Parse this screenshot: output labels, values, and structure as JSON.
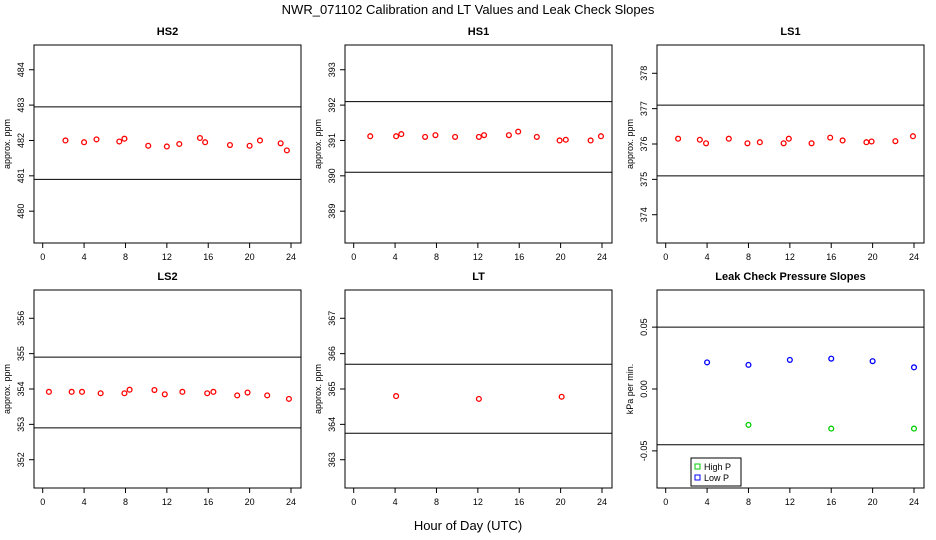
{
  "title": "NWR_071102  Calibration and LT Values and Leak Check Slopes",
  "xlabel": "Hour of Day (UTC)",
  "colors": {
    "points_main": "#ff0000",
    "high_p": "#00cc00",
    "low_p": "#0000ff",
    "line": "#000000"
  },
  "chart_data": [
    {
      "type": "scatter",
      "title": "HS2",
      "ylabel": "approx. ppm",
      "xlim": [
        0,
        24
      ],
      "xticks": [
        0,
        4,
        8,
        12,
        16,
        20,
        24
      ],
      "ylim": [
        479.1,
        484.7
      ],
      "yticks": [
        480,
        481,
        482,
        483,
        484
      ],
      "hlines": [
        482.95,
        480.9
      ],
      "series": [
        {
          "color": "#ff0000",
          "x": [
            2.2,
            4.0,
            5.2,
            7.4,
            7.9,
            10.2,
            12.0,
            13.2,
            15.2,
            15.7,
            18.1,
            20.0,
            21.0,
            23.0,
            23.6
          ],
          "y": [
            482.0,
            481.95,
            482.03,
            481.97,
            482.05,
            481.85,
            481.83,
            481.9,
            482.07,
            481.95,
            481.87,
            481.85,
            482.0,
            481.92,
            481.72
          ]
        }
      ]
    },
    {
      "type": "scatter",
      "title": "HS1",
      "ylabel": "approx. ppm",
      "xlim": [
        0,
        24
      ],
      "xticks": [
        0,
        4,
        8,
        12,
        16,
        20,
        24
      ],
      "ylim": [
        388.1,
        393.7
      ],
      "yticks": [
        389,
        390,
        391,
        392,
        393
      ],
      "hlines": [
        392.1,
        390.1
      ],
      "series": [
        {
          "color": "#ff0000",
          "x": [
            1.6,
            4.1,
            4.6,
            6.9,
            7.9,
            9.8,
            12.1,
            12.6,
            15.0,
            15.9,
            17.7,
            19.9,
            20.5,
            22.9,
            23.9
          ],
          "y": [
            391.12,
            391.12,
            391.18,
            391.1,
            391.15,
            391.1,
            391.1,
            391.15,
            391.15,
            391.25,
            391.1,
            391.0,
            391.02,
            391.0,
            391.12
          ]
        }
      ]
    },
    {
      "type": "scatter",
      "title": "LS1",
      "ylabel": "approx. ppm",
      "xlim": [
        0,
        24
      ],
      "xticks": [
        0,
        4,
        8,
        12,
        16,
        20,
        24
      ],
      "ylim": [
        373.2,
        378.8
      ],
      "yticks": [
        374,
        375,
        376,
        377,
        378
      ],
      "hlines": [
        377.1,
        375.1
      ],
      "series": [
        {
          "color": "#ff0000",
          "x": [
            1.2,
            3.3,
            3.9,
            6.1,
            7.9,
            9.1,
            11.4,
            11.9,
            14.1,
            15.9,
            17.1,
            19.4,
            19.9,
            22.2,
            23.9
          ],
          "y": [
            376.15,
            376.12,
            376.02,
            376.15,
            376.02,
            376.05,
            376.02,
            376.15,
            376.02,
            376.18,
            376.1,
            376.05,
            376.07,
            376.08,
            376.22
          ]
        }
      ]
    },
    {
      "type": "scatter",
      "title": "LS2",
      "ylabel": "approx. ppm",
      "xlim": [
        0,
        24
      ],
      "xticks": [
        0,
        4,
        8,
        12,
        16,
        20,
        24
      ],
      "ylim": [
        351.2,
        356.8
      ],
      "yticks": [
        352,
        353,
        354,
        355,
        356
      ],
      "hlines": [
        354.9,
        352.9
      ],
      "series": [
        {
          "color": "#ff0000",
          "x": [
            0.6,
            2.8,
            3.8,
            5.6,
            7.9,
            8.4,
            10.8,
            11.8,
            13.5,
            15.9,
            16.5,
            18.8,
            19.8,
            21.7,
            23.8
          ],
          "y": [
            353.92,
            353.92,
            353.92,
            353.88,
            353.88,
            353.98,
            353.97,
            353.85,
            353.92,
            353.88,
            353.92,
            353.82,
            353.9,
            353.82,
            353.72
          ]
        }
      ]
    },
    {
      "type": "scatter",
      "title": "LT",
      "ylabel": "approx. ppm",
      "xlim": [
        0,
        24
      ],
      "xticks": [
        0,
        4,
        8,
        12,
        16,
        20,
        24
      ],
      "ylim": [
        362.2,
        367.8
      ],
      "yticks": [
        363,
        364,
        365,
        366,
        367
      ],
      "hlines": [
        365.7,
        363.75
      ],
      "series": [
        {
          "color": "#ff0000",
          "x": [
            4.1,
            12.1,
            20.1
          ],
          "y": [
            364.8,
            364.72,
            364.78
          ]
        }
      ]
    },
    {
      "type": "scatter",
      "title": "Leak Check Pressure Slopes",
      "ylabel": "kPa per min.",
      "xlim": [
        0,
        24
      ],
      "xticks": [
        0,
        4,
        8,
        12,
        16,
        20,
        24
      ],
      "ylim": [
        -0.08,
        0.08
      ],
      "yticks": [
        -0.05,
        0.0,
        0.05
      ],
      "ytick_labels": [
        "-0.05",
        "0.00",
        "0.05"
      ],
      "hlines": [
        0.05,
        -0.045
      ],
      "legend": {
        "placement": "bottom-left",
        "entries": [
          "High P",
          "Low P"
        ]
      },
      "series": [
        {
          "name": "High P",
          "color": "#00cc00",
          "x": [
            8.0,
            16.0,
            24.0
          ],
          "y": [
            -0.029,
            -0.032,
            -0.032
          ]
        },
        {
          "name": "Low P",
          "color": "#0000ff",
          "x": [
            4.0,
            8.0,
            12.0,
            16.0,
            20.0,
            24.0
          ],
          "y": [
            0.0215,
            0.0195,
            0.0235,
            0.0245,
            0.0225,
            0.0175
          ]
        }
      ]
    }
  ]
}
